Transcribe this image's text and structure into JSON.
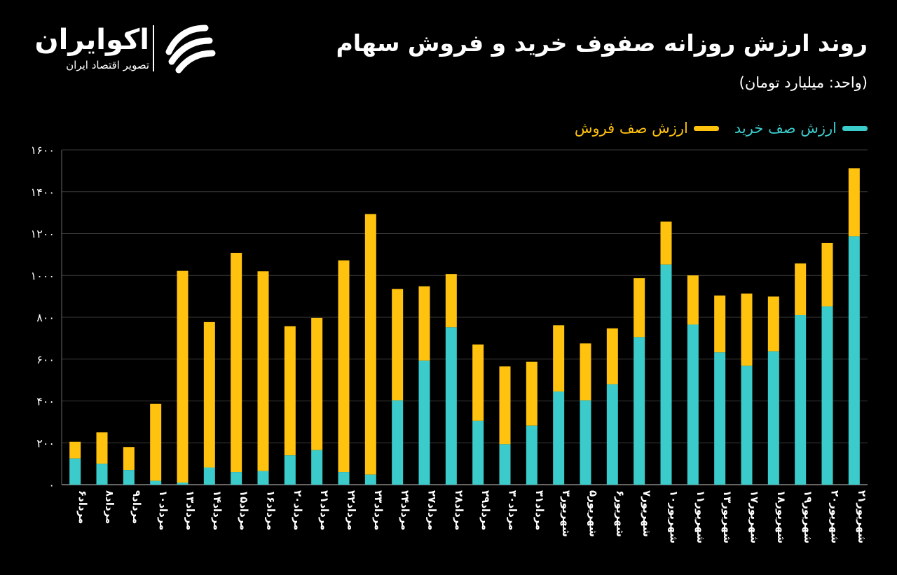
{
  "brand": {
    "name": "اکوایران",
    "tagline": "تصویر اقتصاد ایران"
  },
  "title": "روند ارزش روزانه صفوف خرید و فروش سهام",
  "subtitle": "(واحد: میلیارد تومان)",
  "colors": {
    "background": "#000000",
    "buy": "#3CCBCB",
    "sell": "#FFC20E",
    "grid": "#3a3a3a",
    "text": "#ffffff"
  },
  "chart_data": {
    "type": "bar",
    "stacked": true,
    "ylim": [
      0,
      1600
    ],
    "yticks": [
      0,
      200,
      400,
      600,
      800,
      1000,
      1200,
      1400,
      1600
    ],
    "ytick_labels": [
      "۰",
      "۲۰۰",
      "۴۰۰",
      "۶۰۰",
      "۸۰۰",
      "۱۰۰۰",
      "۱۲۰۰",
      "۱۴۰۰",
      "۱۶۰۰"
    ],
    "grid": true,
    "legend_position": "top-right",
    "categories": [
      "مرداد۶",
      "مرداد۸",
      "مرداد۹",
      "مرداد۱۰",
      "مرداد۱۳",
      "مرداد۱۴",
      "مرداد۱۵",
      "مرداد۱۶",
      "مرداد۲۰",
      "مرداد۲۱",
      "مرداد۲۲",
      "مرداد۲۳",
      "مرداد۲۴",
      "مرداد۲۷",
      "مرداد۲۸",
      "مرداد۲۹",
      "مرداد۳۰",
      "مرداد۳۱",
      "شهریور۳",
      "شهریور۵",
      "شهریور۶",
      "شهریور۷",
      "شهریور۱۰",
      "شهریور۱۱",
      "شهریور۱۳",
      "شهریور۱۷",
      "شهریور۱۸",
      "شهریور۱۹",
      "شهریور۲۰",
      "شهریور۲۱"
    ],
    "series": [
      {
        "name": "ارزش صف خرید",
        "values": [
          125,
          100,
          70,
          18,
          10,
          82,
          60,
          65,
          140,
          165,
          60,
          48,
          403,
          593,
          752,
          305,
          193,
          282,
          445,
          403,
          480,
          705,
          1052,
          765,
          632,
          568,
          637,
          810,
          852,
          1187
        ]
      },
      {
        "name": "ارزش صف فروش",
        "values": [
          80,
          150,
          110,
          368,
          1012,
          695,
          1048,
          955,
          617,
          632,
          1012,
          1245,
          532,
          355,
          255,
          365,
          372,
          305,
          317,
          272,
          267,
          282,
          205,
          235,
          272,
          345,
          262,
          247,
          303,
          325
        ]
      }
    ]
  }
}
